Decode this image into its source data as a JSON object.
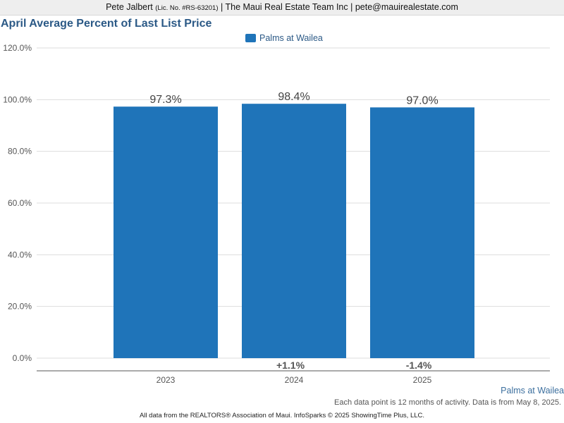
{
  "header": {
    "name": "Pete Jalbert",
    "license": "(Lic. No. #RS-63201)",
    "rest": "| The Maui Real Estate Team Inc | pete@mauirealestate.com"
  },
  "chart_data": {
    "type": "bar",
    "title": "April Average Percent of Last List Price",
    "xlabel": "",
    "ylabel": "",
    "categories": [
      "2023",
      "2024",
      "2025"
    ],
    "series": [
      {
        "name": "Palms at Wailea",
        "values": [
          97.3,
          98.4,
          97.0
        ],
        "color": "#1f74b9"
      }
    ],
    "data_labels": [
      "97.3%",
      "98.4%",
      "97.0%"
    ],
    "change_labels": [
      "",
      "+1.1%",
      "-1.4%"
    ],
    "ylim": [
      0,
      120
    ],
    "yticks": [
      0,
      20,
      40,
      60,
      80,
      100,
      120
    ],
    "ytick_labels": [
      "0.0%",
      "20.0%",
      "40.0%",
      "60.0%",
      "80.0%",
      "100.0%",
      "120.0%"
    ],
    "grid": true,
    "legend_position": "top-center"
  },
  "footer": {
    "series_label": "Palms at Wailea",
    "note": "Each data point is 12 months of activity. Data is from May 8, 2025.",
    "copyright": "All data from the REALTORS® Association of Maui. InfoSparks © 2025 ShowingTime Plus, LLC."
  }
}
